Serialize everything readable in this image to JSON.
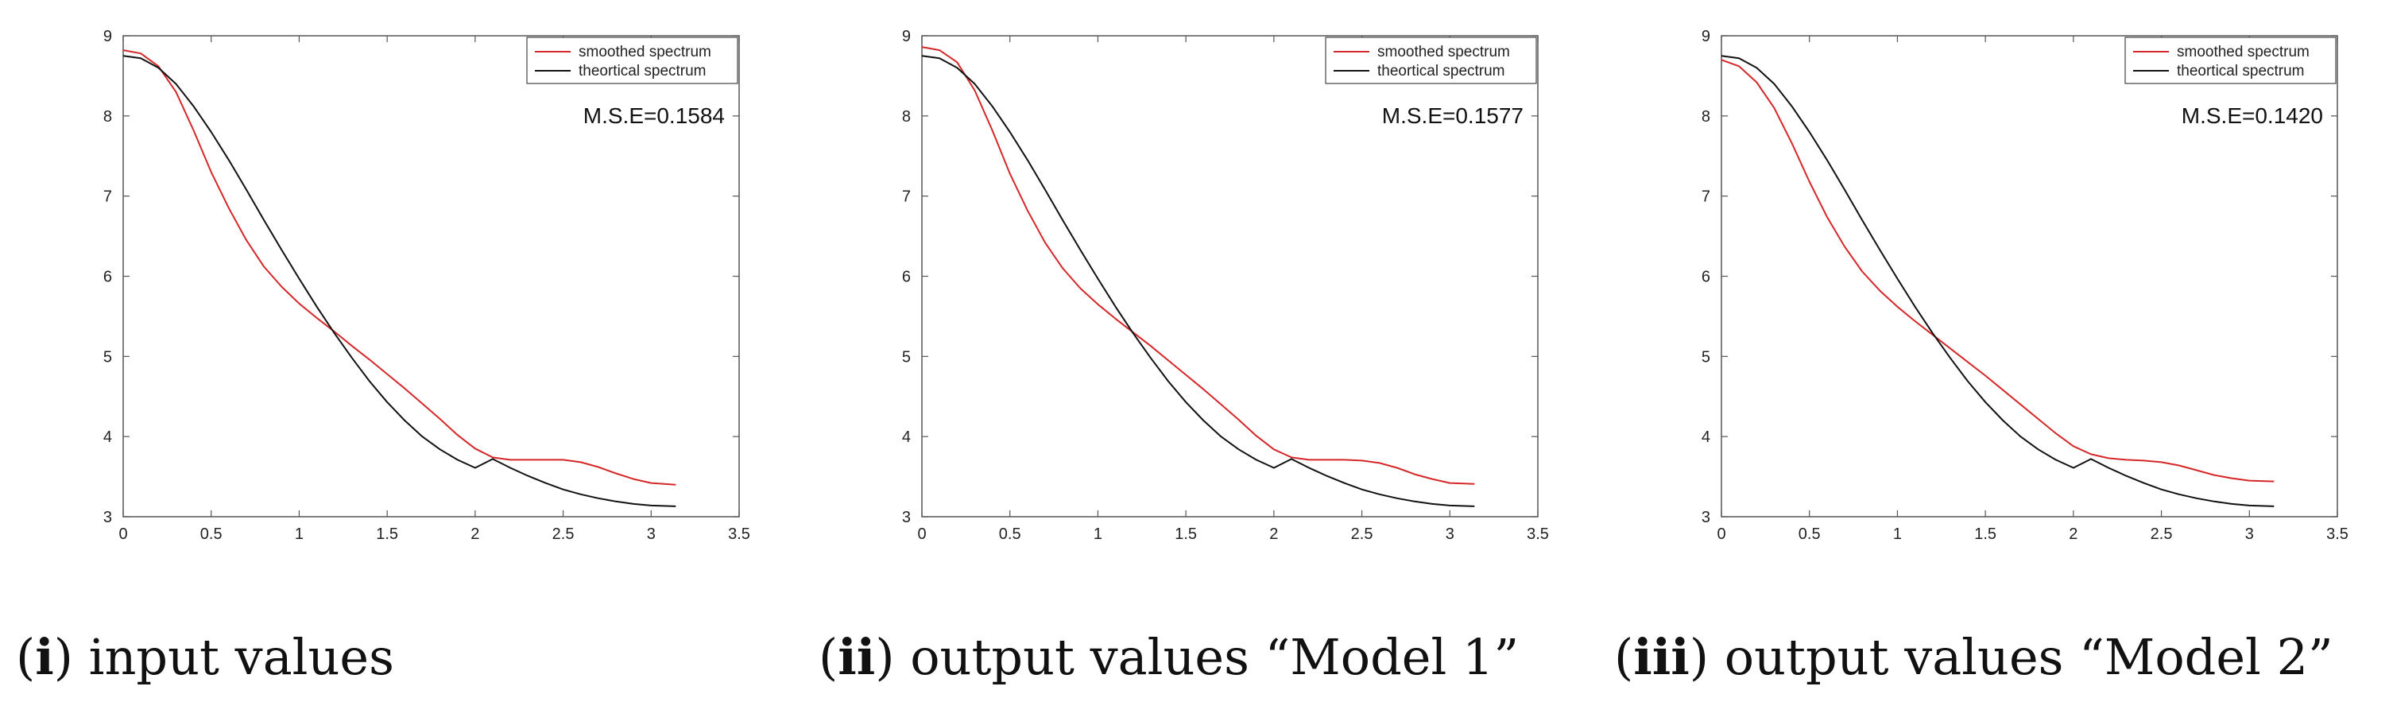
{
  "chart_data": [
    {
      "type": "line",
      "caption_num": "i",
      "caption_text": "input values",
      "annotation": "M.S.E=0.1584",
      "xlim": [
        0,
        3.5
      ],
      "ylim": [
        3,
        9
      ],
      "xticks": [
        "0",
        "0.5",
        "1",
        "1.5",
        "2",
        "2.5",
        "3",
        "3.5"
      ],
      "yticks": [
        "3",
        "4",
        "5",
        "6",
        "7",
        "8",
        "9"
      ],
      "legend_position": "top-right",
      "series": [
        {
          "name": "smoothed spectrum",
          "color": "#d62728",
          "x": [
            0,
            0.1,
            0.2,
            0.3,
            0.4,
            0.5,
            0.6,
            0.7,
            0.8,
            0.9,
            1.0,
            1.1,
            1.2,
            1.3,
            1.4,
            1.5,
            1.6,
            1.7,
            1.8,
            1.9,
            2.0,
            2.1,
            2.2,
            2.3,
            2.4,
            2.5,
            2.6,
            2.7,
            2.8,
            2.9,
            3.0,
            3.14
          ],
          "values": [
            8.82,
            8.78,
            8.62,
            8.3,
            7.82,
            7.3,
            6.85,
            6.45,
            6.12,
            5.87,
            5.66,
            5.48,
            5.31,
            5.13,
            4.96,
            4.78,
            4.6,
            4.41,
            4.22,
            4.02,
            3.85,
            3.74,
            3.71,
            3.71,
            3.71,
            3.71,
            3.68,
            3.62,
            3.54,
            3.47,
            3.42,
            3.4
          ]
        },
        {
          "name": "theortical spectrum",
          "color": "#111111",
          "x": [
            0,
            0.1,
            0.2,
            0.3,
            0.4,
            0.5,
            0.6,
            0.7,
            0.8,
            0.9,
            1.0,
            1.1,
            1.2,
            1.3,
            1.4,
            1.5,
            1.6,
            1.7,
            1.8,
            1.9,
            2.0,
            2.1,
            2.2,
            2.3,
            2.4,
            2.5,
            2.6,
            2.7,
            2.8,
            2.9,
            3.0,
            3.14
          ],
          "values": [
            8.75,
            8.72,
            8.6,
            8.4,
            8.12,
            7.8,
            7.45,
            7.08,
            6.7,
            6.33,
            5.97,
            5.62,
            5.29,
            4.98,
            4.69,
            4.43,
            4.2,
            4.0,
            3.84,
            3.71,
            3.61,
            3.72,
            3.61,
            3.51,
            3.42,
            3.34,
            3.28,
            3.23,
            3.19,
            3.16,
            3.14,
            3.13
          ]
        }
      ]
    },
    {
      "type": "line",
      "caption_num": "ii",
      "caption_text": "output values “Model 1”",
      "annotation": "M.S.E=0.1577",
      "xlim": [
        0,
        3.5
      ],
      "ylim": [
        3,
        9
      ],
      "xticks": [
        "0",
        "0.5",
        "1",
        "1.5",
        "2",
        "2.5",
        "3",
        "3.5"
      ],
      "yticks": [
        "3",
        "4",
        "5",
        "6",
        "7",
        "8",
        "9"
      ],
      "legend_position": "top-right",
      "series": [
        {
          "name": "smoothed spectrum",
          "color": "#d62728",
          "x": [
            0,
            0.1,
            0.2,
            0.3,
            0.4,
            0.5,
            0.6,
            0.7,
            0.8,
            0.9,
            1.0,
            1.1,
            1.2,
            1.3,
            1.4,
            1.5,
            1.6,
            1.7,
            1.8,
            1.9,
            2.0,
            2.1,
            2.2,
            2.3,
            2.4,
            2.5,
            2.6,
            2.7,
            2.8,
            2.9,
            3.0,
            3.14
          ],
          "values": [
            8.86,
            8.82,
            8.67,
            8.32,
            7.82,
            7.28,
            6.82,
            6.42,
            6.1,
            5.85,
            5.65,
            5.47,
            5.3,
            5.13,
            4.95,
            4.77,
            4.59,
            4.4,
            4.21,
            4.01,
            3.84,
            3.74,
            3.71,
            3.71,
            3.71,
            3.7,
            3.67,
            3.61,
            3.53,
            3.47,
            3.42,
            3.41
          ]
        },
        {
          "name": "theortical spectrum",
          "color": "#111111",
          "x": [
            0,
            0.1,
            0.2,
            0.3,
            0.4,
            0.5,
            0.6,
            0.7,
            0.8,
            0.9,
            1.0,
            1.1,
            1.2,
            1.3,
            1.4,
            1.5,
            1.6,
            1.7,
            1.8,
            1.9,
            2.0,
            2.1,
            2.2,
            2.3,
            2.4,
            2.5,
            2.6,
            2.7,
            2.8,
            2.9,
            3.0,
            3.14
          ],
          "values": [
            8.75,
            8.72,
            8.6,
            8.4,
            8.12,
            7.8,
            7.45,
            7.08,
            6.7,
            6.33,
            5.97,
            5.62,
            5.29,
            4.98,
            4.69,
            4.43,
            4.2,
            4.0,
            3.84,
            3.71,
            3.61,
            3.72,
            3.61,
            3.51,
            3.42,
            3.34,
            3.28,
            3.23,
            3.19,
            3.16,
            3.14,
            3.13
          ]
        }
      ]
    },
    {
      "type": "line",
      "caption_num": "iii",
      "caption_text": "output values “Model 2”",
      "annotation": "M.S.E=0.1420",
      "xlim": [
        0,
        3.5
      ],
      "ylim": [
        3,
        9
      ],
      "xticks": [
        "0",
        "0.5",
        "1",
        "1.5",
        "2",
        "2.5",
        "3",
        "3.5"
      ],
      "yticks": [
        "3",
        "4",
        "5",
        "6",
        "7",
        "8",
        "9"
      ],
      "legend_position": "top-right",
      "series": [
        {
          "name": "smoothed spectrum",
          "color": "#d62728",
          "x": [
            0,
            0.1,
            0.2,
            0.3,
            0.4,
            0.5,
            0.6,
            0.7,
            0.8,
            0.9,
            1.0,
            1.1,
            1.2,
            1.3,
            1.4,
            1.5,
            1.6,
            1.7,
            1.8,
            1.9,
            2.0,
            2.1,
            2.2,
            2.3,
            2.4,
            2.5,
            2.6,
            2.7,
            2.8,
            2.9,
            3.0,
            3.14
          ],
          "values": [
            8.7,
            8.62,
            8.42,
            8.1,
            7.66,
            7.18,
            6.74,
            6.37,
            6.06,
            5.82,
            5.62,
            5.44,
            5.27,
            5.1,
            4.93,
            4.76,
            4.58,
            4.4,
            4.22,
            4.04,
            3.88,
            3.78,
            3.73,
            3.71,
            3.7,
            3.68,
            3.64,
            3.58,
            3.52,
            3.48,
            3.45,
            3.44
          ]
        },
        {
          "name": "theortical spectrum",
          "color": "#111111",
          "x": [
            0,
            0.1,
            0.2,
            0.3,
            0.4,
            0.5,
            0.6,
            0.7,
            0.8,
            0.9,
            1.0,
            1.1,
            1.2,
            1.3,
            1.4,
            1.5,
            1.6,
            1.7,
            1.8,
            1.9,
            2.0,
            2.1,
            2.2,
            2.3,
            2.4,
            2.5,
            2.6,
            2.7,
            2.8,
            2.9,
            3.0,
            3.14
          ],
          "values": [
            8.75,
            8.72,
            8.6,
            8.4,
            8.12,
            7.8,
            7.45,
            7.08,
            6.7,
            6.33,
            5.97,
            5.62,
            5.29,
            4.98,
            4.69,
            4.43,
            4.2,
            4.0,
            3.84,
            3.71,
            3.61,
            3.72,
            3.61,
            3.51,
            3.42,
            3.34,
            3.28,
            3.23,
            3.19,
            3.16,
            3.14,
            3.13
          ]
        }
      ]
    }
  ]
}
